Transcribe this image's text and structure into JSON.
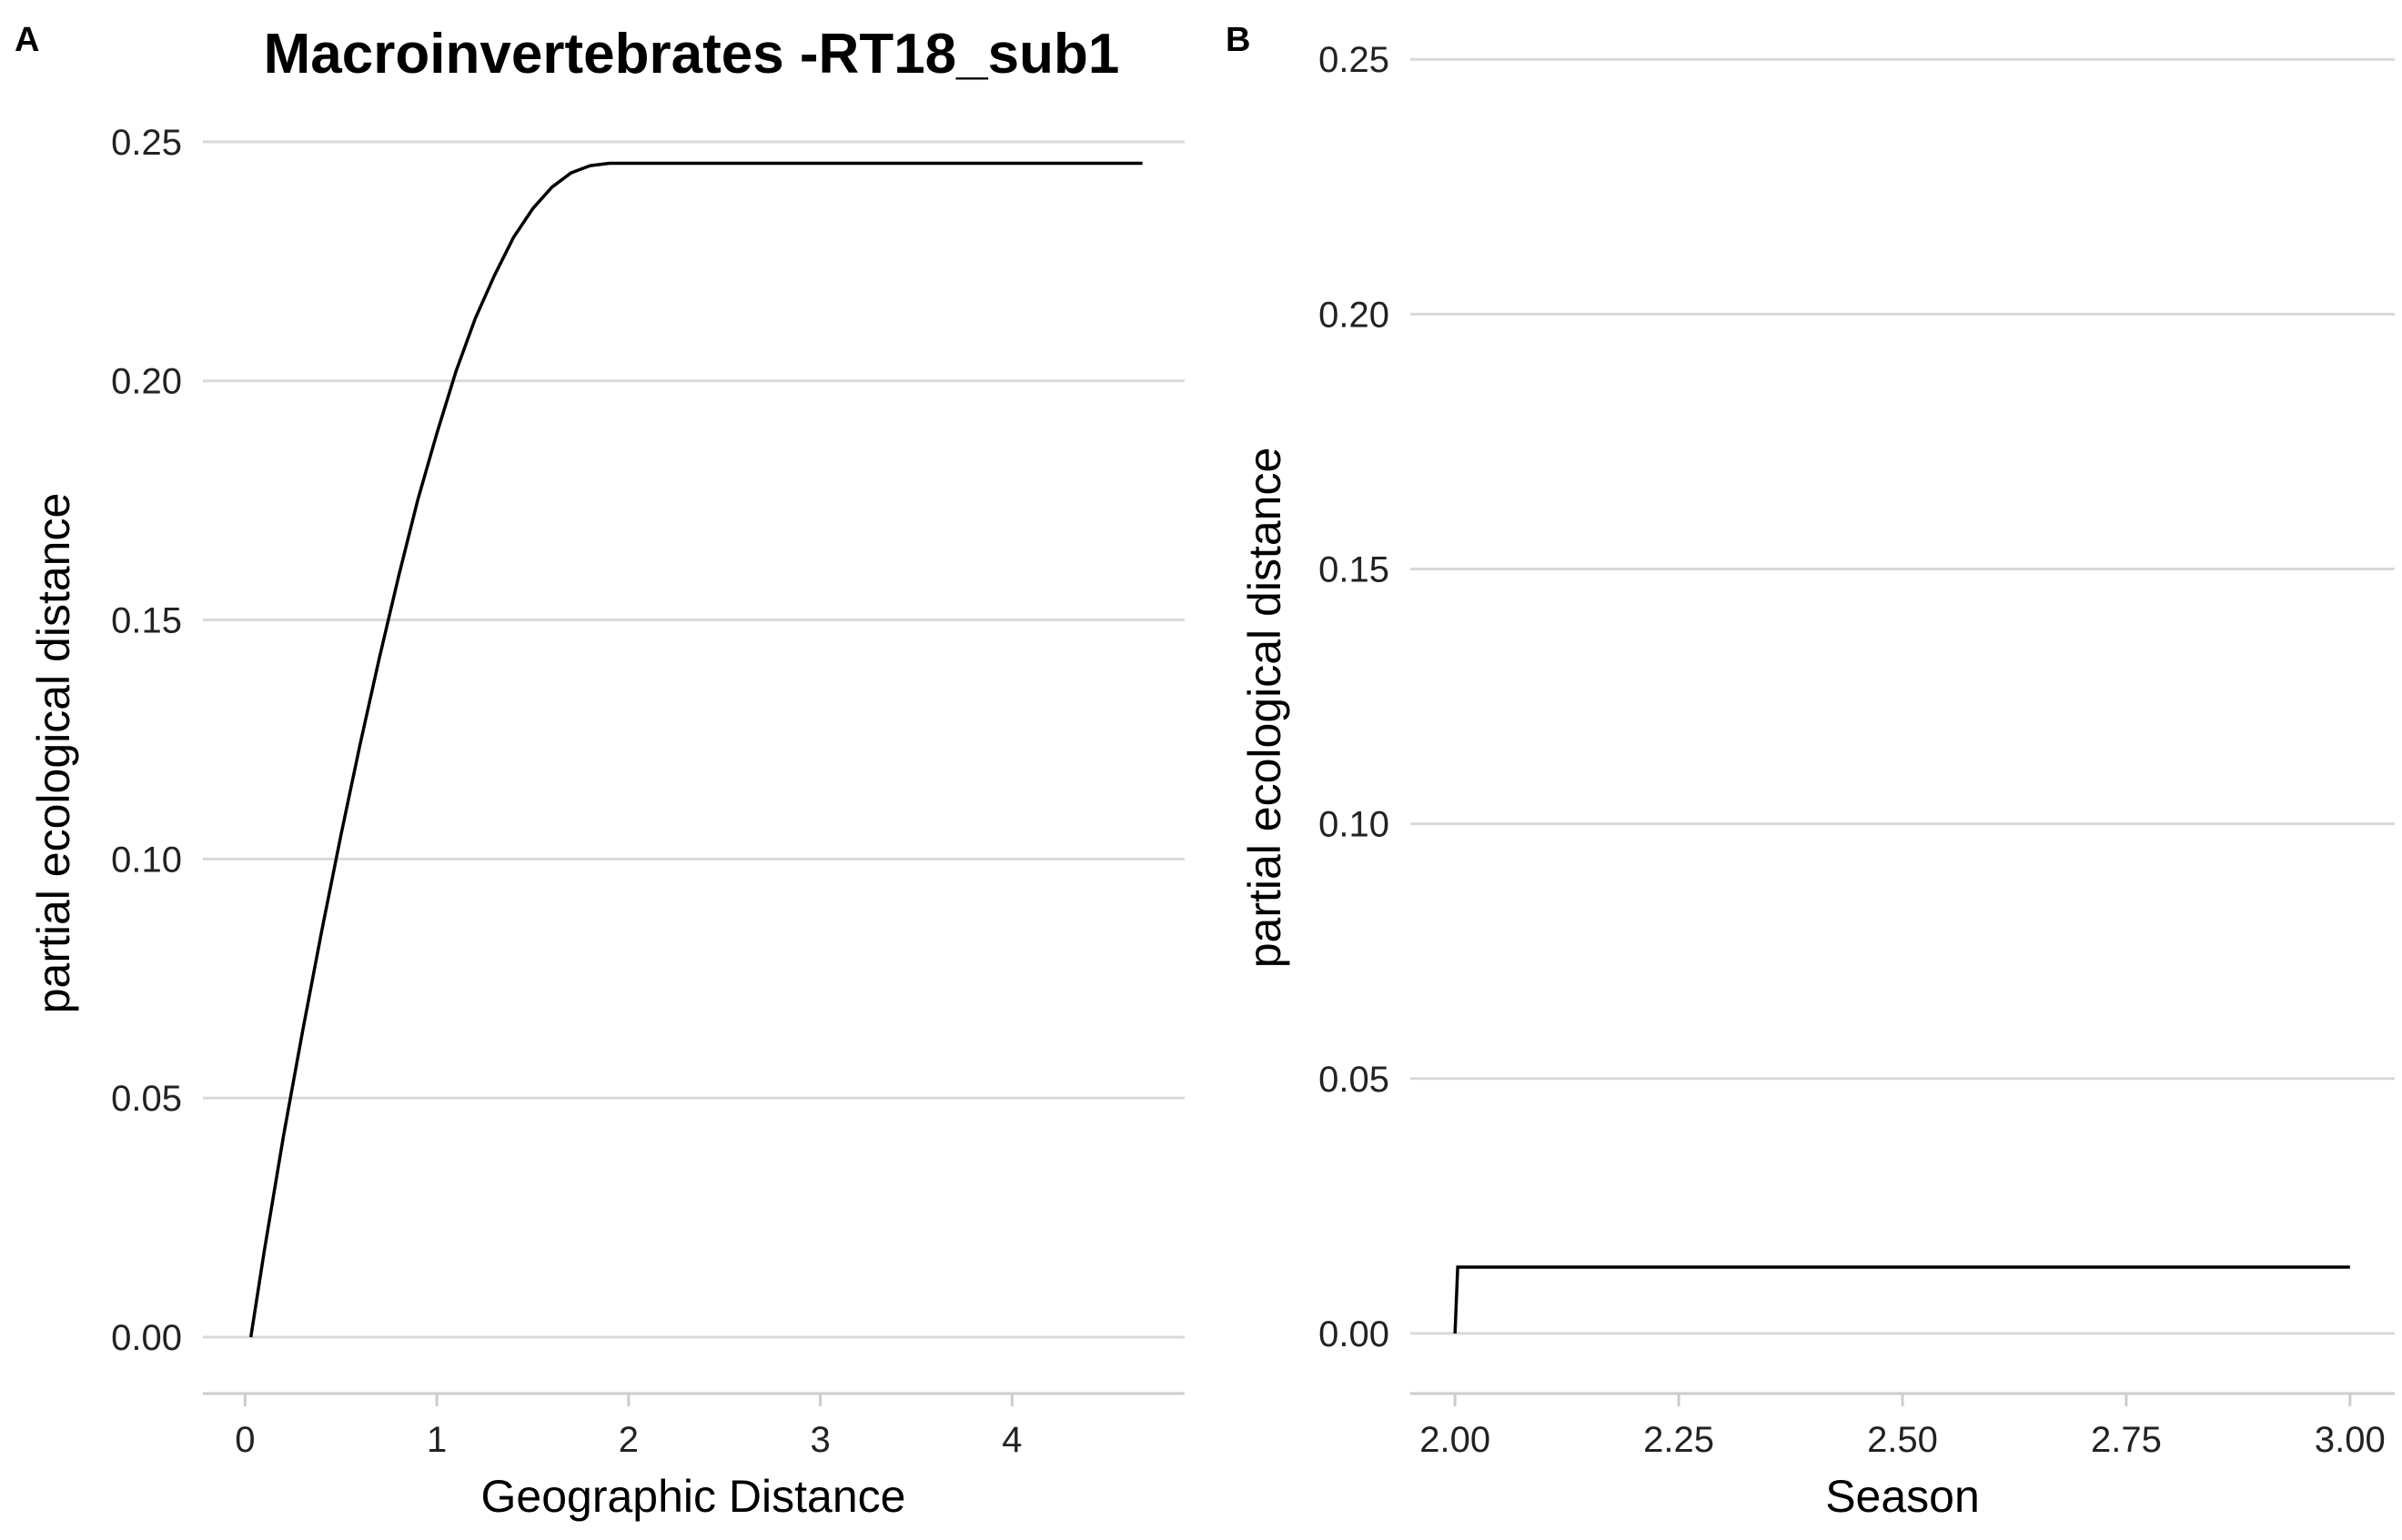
{
  "chart_data": [
    {
      "panel": "A",
      "type": "line",
      "title": "Macroinvertebrates -RT18_sub1",
      "xlabel": "Geographic Distance",
      "ylabel": "partial ecological distance",
      "xlim": [
        -0.22,
        4.9
      ],
      "ylim": [
        -0.0118,
        0.2515
      ],
      "xticks": [
        0,
        1,
        2,
        3,
        4
      ],
      "yticks": [
        0.0,
        0.05,
        0.1,
        0.15,
        0.2,
        0.25
      ],
      "xtick_labels": [
        "0",
        "1",
        "2",
        "3",
        "4"
      ],
      "ytick_labels": [
        "0.00",
        "0.05",
        "0.10",
        "0.15",
        "0.20",
        "0.25"
      ],
      "grid": "horizontal",
      "line_color": "#000000",
      "series": [
        {
          "x": [
            0.03,
            0.1,
            0.2,
            0.3,
            0.4,
            0.5,
            0.6,
            0.7,
            0.8,
            0.9,
            1.0,
            1.1,
            1.2,
            1.3,
            1.4,
            1.5,
            1.6,
            1.7,
            1.8,
            1.9,
            2.0,
            2.5,
            3.0,
            3.5,
            4.0,
            4.5,
            4.68
          ],
          "y": [
            0.0,
            0.018,
            0.042,
            0.064,
            0.085,
            0.105,
            0.124,
            0.142,
            0.159,
            0.175,
            0.189,
            0.202,
            0.213,
            0.222,
            0.23,
            0.236,
            0.2405,
            0.2435,
            0.245,
            0.2455,
            0.2455,
            0.2455,
            0.2455,
            0.2455,
            0.2455,
            0.2455,
            0.2455
          ]
        }
      ]
    },
    {
      "panel": "B",
      "type": "line",
      "xlabel": "Season",
      "ylabel": "partial ecological distance",
      "xlim": [
        1.95,
        3.05
      ],
      "ylim": [
        -0.0118,
        0.2545
      ],
      "xticks": [
        2.0,
        2.25,
        2.5,
        2.75,
        3.0
      ],
      "yticks": [
        0.0,
        0.05,
        0.1,
        0.15,
        0.2,
        0.25
      ],
      "xtick_labels": [
        "2.00",
        "2.25",
        "2.50",
        "2.75",
        "3.00"
      ],
      "ytick_labels": [
        "0.00",
        "0.05",
        "0.10",
        "0.15",
        "0.20",
        "0.25"
      ],
      "grid": "horizontal",
      "line_color": "#000000",
      "series": [
        {
          "x": [
            2.0,
            2.003,
            3.0
          ],
          "y": [
            0.0,
            0.013,
            0.013
          ]
        }
      ]
    }
  ]
}
